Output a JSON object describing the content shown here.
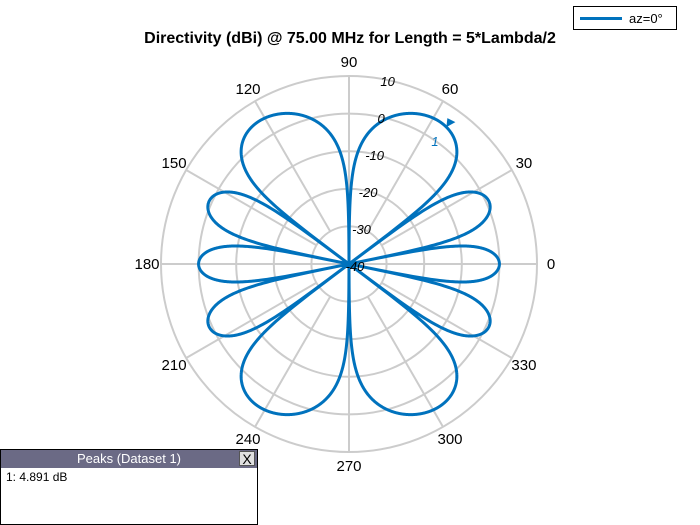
{
  "chart_data": {
    "type": "polar",
    "title": "Directivity (dBi) @ 75.00 MHz for Length = 5*Lambda/2",
    "legend": [
      {
        "label": "az=0°",
        "color": "#0072BD"
      }
    ],
    "angle_ticks": [
      0,
      30,
      60,
      90,
      120,
      150,
      180,
      210,
      240,
      270,
      300,
      330
    ],
    "radial_ticks": [
      -40,
      -30,
      -20,
      -10,
      0,
      10
    ],
    "radial_range": [
      -40,
      10
    ],
    "units": "dBi",
    "frequency_mhz": 75.0,
    "antenna_length_wavelengths": 2.5,
    "series": [
      {
        "name": "az=0°",
        "description": "Elevation cut of dipole directivity, nulls at 90 and 270 deg, main lobes near ±56 deg and 124/236 deg, minor lobes near 0/180 and ±23 deg",
        "peak_db": 4.891,
        "peak_angle_deg": 56
      }
    ],
    "grid": true,
    "legend_position": "top-right"
  },
  "legend": {
    "label": "az=0°"
  },
  "title": "Directivity (dBi) @ 75.00 MHz for Length = 5*Lambda/2",
  "peak_marker": {
    "label": "1"
  },
  "peaks_panel": {
    "title": "Peaks (Dataset 1)",
    "close_label": "X",
    "entries": [
      "1: 4.891 dB"
    ]
  },
  "colors": {
    "series": "#0072BD",
    "grid": "#cccccc"
  }
}
